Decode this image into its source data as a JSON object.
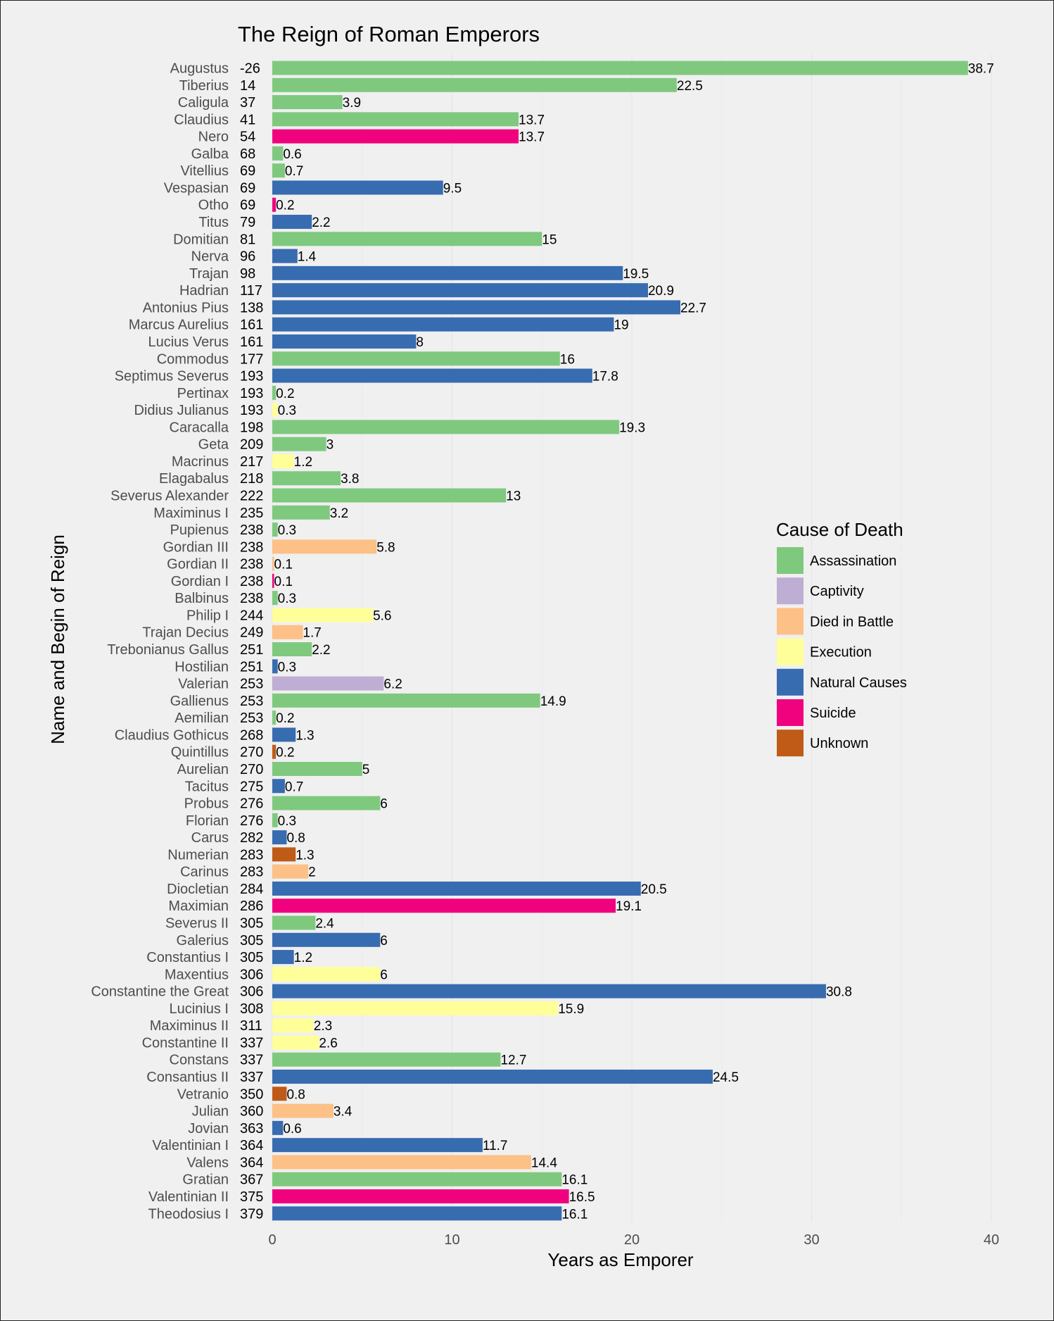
{
  "chart_data": {
    "type": "bar",
    "orientation": "horizontal",
    "title": "The Reign of Roman Emperors",
    "xlabel": "Years as Emporer",
    "ylabel": "Name and Begin of Reign",
    "xlim": [
      0,
      40
    ],
    "xticks": [
      0,
      10,
      20,
      30,
      40
    ],
    "grid": true,
    "legend": {
      "title": "Cause of Death",
      "placement": "right",
      "entries": [
        {
          "label": "Assassination",
          "color": "#7fc97f"
        },
        {
          "label": "Captivity",
          "color": "#beaed4"
        },
        {
          "label": "Died in Battle",
          "color": "#fdc086"
        },
        {
          "label": "Execution",
          "color": "#ffff99"
        },
        {
          "label": "Natural Causes",
          "color": "#386cb0"
        },
        {
          "label": "Suicide",
          "color": "#f0027f"
        },
        {
          "label": "Unknown",
          "color": "#bf5b17"
        }
      ]
    },
    "rows": [
      {
        "name": "Augustus",
        "begin": "-26",
        "value": 38.7,
        "label": "38.7",
        "cause": "Assassination"
      },
      {
        "name": "Tiberius",
        "begin": "14",
        "value": 22.5,
        "label": "22.5",
        "cause": "Assassination"
      },
      {
        "name": "Caligula",
        "begin": "37",
        "value": 3.9,
        "label": "3.9",
        "cause": "Assassination"
      },
      {
        "name": "Claudius",
        "begin": "41",
        "value": 13.7,
        "label": "13.7",
        "cause": "Assassination"
      },
      {
        "name": "Nero",
        "begin": "54",
        "value": 13.7,
        "label": "13.7",
        "cause": "Suicide"
      },
      {
        "name": "Galba",
        "begin": "68",
        "value": 0.6,
        "label": "0.6",
        "cause": "Assassination"
      },
      {
        "name": "Vitellius",
        "begin": "69",
        "value": 0.7,
        "label": "0.7",
        "cause": "Assassination"
      },
      {
        "name": "Vespasian",
        "begin": "69",
        "value": 9.5,
        "label": "9.5",
        "cause": "Natural Causes"
      },
      {
        "name": "Otho",
        "begin": "69",
        "value": 0.2,
        "label": "0.2",
        "cause": "Suicide"
      },
      {
        "name": "Titus",
        "begin": "79",
        "value": 2.2,
        "label": "2.2",
        "cause": "Natural Causes"
      },
      {
        "name": "Domitian",
        "begin": "81",
        "value": 15,
        "label": "15",
        "cause": "Assassination"
      },
      {
        "name": "Nerva",
        "begin": "96",
        "value": 1.4,
        "label": "1.4",
        "cause": "Natural Causes"
      },
      {
        "name": "Trajan",
        "begin": "98",
        "value": 19.5,
        "label": "19.5",
        "cause": "Natural Causes"
      },
      {
        "name": "Hadrian",
        "begin": "117",
        "value": 20.9,
        "label": "20.9",
        "cause": "Natural Causes"
      },
      {
        "name": "Antonius Pius",
        "begin": "138",
        "value": 22.7,
        "label": "22.7",
        "cause": "Natural Causes"
      },
      {
        "name": "Marcus Aurelius",
        "begin": "161",
        "value": 19,
        "label": "19",
        "cause": "Natural Causes"
      },
      {
        "name": "Lucius Verus",
        "begin": "161",
        "value": 8,
        "label": "8",
        "cause": "Natural Causes"
      },
      {
        "name": "Commodus",
        "begin": "177",
        "value": 16,
        "label": "16",
        "cause": "Assassination"
      },
      {
        "name": "Septimus Severus",
        "begin": "193",
        "value": 17.8,
        "label": "17.8",
        "cause": "Natural Causes"
      },
      {
        "name": "Pertinax",
        "begin": "193",
        "value": 0.2,
        "label": "0.2",
        "cause": "Assassination"
      },
      {
        "name": "Didius Julianus",
        "begin": "193",
        "value": 0.3,
        "label": "0.3",
        "cause": "Execution"
      },
      {
        "name": "Caracalla",
        "begin": "198",
        "value": 19.3,
        "label": "19.3",
        "cause": "Assassination"
      },
      {
        "name": "Geta",
        "begin": "209",
        "value": 3,
        "label": "3",
        "cause": "Assassination"
      },
      {
        "name": "Macrinus",
        "begin": "217",
        "value": 1.2,
        "label": "1.2",
        "cause": "Execution"
      },
      {
        "name": "Elagabalus",
        "begin": "218",
        "value": 3.8,
        "label": "3.8",
        "cause": "Assassination"
      },
      {
        "name": "Severus Alexander",
        "begin": "222",
        "value": 13,
        "label": "13",
        "cause": "Assassination"
      },
      {
        "name": "Maximinus I",
        "begin": "235",
        "value": 3.2,
        "label": "3.2",
        "cause": "Assassination"
      },
      {
        "name": "Pupienus",
        "begin": "238",
        "value": 0.3,
        "label": "0.3",
        "cause": "Assassination"
      },
      {
        "name": "Gordian III",
        "begin": "238",
        "value": 5.8,
        "label": "5.8",
        "cause": "Died in Battle"
      },
      {
        "name": "Gordian II",
        "begin": "238",
        "value": 0.1,
        "label": "0.1",
        "cause": "Died in Battle"
      },
      {
        "name": "Gordian I",
        "begin": "238",
        "value": 0.1,
        "label": "0.1",
        "cause": "Suicide"
      },
      {
        "name": "Balbinus",
        "begin": "238",
        "value": 0.3,
        "label": "0.3",
        "cause": "Assassination"
      },
      {
        "name": "Philip I",
        "begin": "244",
        "value": 5.6,
        "label": "5.6",
        "cause": "Execution"
      },
      {
        "name": "Trajan Decius",
        "begin": "249",
        "value": 1.7,
        "label": "1.7",
        "cause": "Died in Battle"
      },
      {
        "name": "Trebonianus Gallus",
        "begin": "251",
        "value": 2.2,
        "label": "2.2",
        "cause": "Assassination"
      },
      {
        "name": "Hostilian",
        "begin": "251",
        "value": 0.3,
        "label": "0.3",
        "cause": "Natural Causes"
      },
      {
        "name": "Valerian",
        "begin": "253",
        "value": 6.2,
        "label": "6.2",
        "cause": "Captivity"
      },
      {
        "name": "Gallienus",
        "begin": "253",
        "value": 14.9,
        "label": "14.9",
        "cause": "Assassination"
      },
      {
        "name": "Aemilian",
        "begin": "253",
        "value": 0.2,
        "label": "0.2",
        "cause": "Assassination"
      },
      {
        "name": "Claudius Gothicus",
        "begin": "268",
        "value": 1.3,
        "label": "1.3",
        "cause": "Natural Causes"
      },
      {
        "name": "Quintillus",
        "begin": "270",
        "value": 0.2,
        "label": "0.2",
        "cause": "Unknown"
      },
      {
        "name": "Aurelian",
        "begin": "270",
        "value": 5,
        "label": "5",
        "cause": "Assassination"
      },
      {
        "name": "Tacitus",
        "begin": "275",
        "value": 0.7,
        "label": "0.7",
        "cause": "Natural Causes"
      },
      {
        "name": "Probus",
        "begin": "276",
        "value": 6,
        "label": "6",
        "cause": "Assassination"
      },
      {
        "name": "Florian",
        "begin": "276",
        "value": 0.3,
        "label": "0.3",
        "cause": "Assassination"
      },
      {
        "name": "Carus",
        "begin": "282",
        "value": 0.8,
        "label": "0.8",
        "cause": "Natural Causes"
      },
      {
        "name": "Numerian",
        "begin": "283",
        "value": 1.3,
        "label": "1.3",
        "cause": "Unknown"
      },
      {
        "name": "Carinus",
        "begin": "283",
        "value": 2,
        "label": "2",
        "cause": "Died in Battle"
      },
      {
        "name": "Diocletian",
        "begin": "284",
        "value": 20.5,
        "label": "20.5",
        "cause": "Natural Causes"
      },
      {
        "name": "Maximian",
        "begin": "286",
        "value": 19.1,
        "label": "19.1",
        "cause": "Suicide"
      },
      {
        "name": "Severus II",
        "begin": "305",
        "value": 2.4,
        "label": "2.4",
        "cause": "Assassination"
      },
      {
        "name": "Galerius",
        "begin": "305",
        "value": 6,
        "label": "6",
        "cause": "Natural Causes"
      },
      {
        "name": "Constantius I",
        "begin": "305",
        "value": 1.2,
        "label": "1.2",
        "cause": "Natural Causes"
      },
      {
        "name": "Maxentius",
        "begin": "306",
        "value": 6,
        "label": "6",
        "cause": "Execution"
      },
      {
        "name": "Constantine the Great",
        "begin": "306",
        "value": 30.8,
        "label": "30.8",
        "cause": "Natural Causes"
      },
      {
        "name": "Lucinius I",
        "begin": "308",
        "value": 15.9,
        "label": "15.9",
        "cause": "Execution"
      },
      {
        "name": "Maximinus II",
        "begin": "311",
        "value": 2.3,
        "label": "2.3",
        "cause": "Execution"
      },
      {
        "name": "Constantine II",
        "begin": "337",
        "value": 2.6,
        "label": "2.6",
        "cause": "Execution"
      },
      {
        "name": "Constans",
        "begin": "337",
        "value": 12.7,
        "label": "12.7",
        "cause": "Assassination"
      },
      {
        "name": "Consantius II",
        "begin": "337",
        "value": 24.5,
        "label": "24.5",
        "cause": "Natural Causes"
      },
      {
        "name": "Vetranio",
        "begin": "350",
        "value": 0.8,
        "label": "0.8",
        "cause": "Unknown"
      },
      {
        "name": "Julian",
        "begin": "360",
        "value": 3.4,
        "label": "3.4",
        "cause": "Died in Battle"
      },
      {
        "name": "Jovian",
        "begin": "363",
        "value": 0.6,
        "label": "0.6",
        "cause": "Natural Causes"
      },
      {
        "name": "Valentinian I",
        "begin": "364",
        "value": 11.7,
        "label": "11.7",
        "cause": "Natural Causes"
      },
      {
        "name": "Valens",
        "begin": "364",
        "value": 14.4,
        "label": "14.4",
        "cause": "Died in Battle"
      },
      {
        "name": "Gratian",
        "begin": "367",
        "value": 16.1,
        "label": "16.1",
        "cause": "Assassination"
      },
      {
        "name": "Valentinian II",
        "begin": "375",
        "value": 16.5,
        "label": "16.5",
        "cause": "Suicide"
      },
      {
        "name": "Theodosius I",
        "begin": "379",
        "value": 16.1,
        "label": "16.1",
        "cause": "Natural Causes"
      }
    ]
  }
}
